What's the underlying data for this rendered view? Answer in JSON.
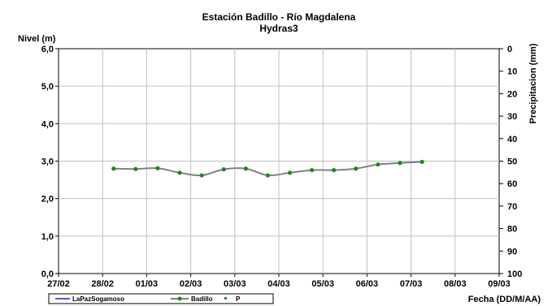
{
  "chart_data": {
    "type": "line",
    "title": "Estación Badillo - Río Magdalena",
    "subtitle": "Hydras3",
    "ylabel": "Nivel (m)",
    "y2label": "Precipitacion (mm)",
    "xlabel": "Fecha (DD/M/AA)",
    "x_ticks": [
      "27/02",
      "28/02",
      "01/03",
      "02/03",
      "03/03",
      "04/03",
      "05/03",
      "06/03",
      "07/03",
      "08/03",
      "09/03"
    ],
    "y_ticks": [
      "0,0",
      "1,0",
      "2,0",
      "3,0",
      "4,0",
      "5,0",
      "6,0"
    ],
    "y2_ticks": [
      "0",
      "10",
      "20",
      "30",
      "40",
      "50",
      "60",
      "70",
      "80",
      "90",
      "100"
    ],
    "ylim": [
      0,
      6
    ],
    "y2lim": [
      0,
      100
    ],
    "y2_inverted": true,
    "xlim": [
      0,
      10
    ],
    "grid": true,
    "legend_position": "bottom-left",
    "series": [
      {
        "name": "LaPazSogamoso",
        "color": "#1f1fcc",
        "x": [],
        "y": []
      },
      {
        "name": "Badillo",
        "color": "#808080",
        "marker_color": "#1a8a1a",
        "x": [
          1.25,
          1.75,
          2.25,
          2.75,
          3.25,
          3.75,
          4.25,
          4.75,
          5.25,
          5.75,
          6.25,
          6.75,
          7.25,
          7.75,
          8.25
        ],
        "y": [
          2.8,
          2.79,
          2.81,
          2.69,
          2.62,
          2.78,
          2.8,
          2.62,
          2.69,
          2.76,
          2.76,
          2.8,
          2.91,
          2.95,
          2.98
        ]
      },
      {
        "name": "P",
        "color": "#1a8a1a",
        "x": [],
        "y": []
      }
    ]
  }
}
